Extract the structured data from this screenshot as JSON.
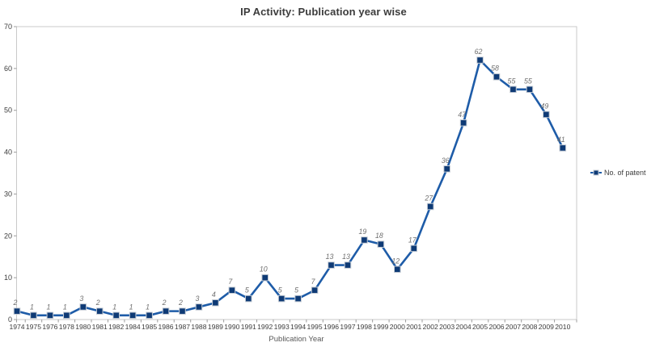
{
  "chart_data": {
    "type": "line",
    "title": "IP Activity: Publication year wise",
    "xlabel": "Publication Year",
    "ylabel": "",
    "categories": [
      "1974",
      "1975",
      "1976",
      "1978",
      "1980",
      "1981",
      "1982",
      "1984",
      "1985",
      "1986",
      "1987",
      "1988",
      "1989",
      "1990",
      "1991",
      "1992",
      "1993",
      "1994",
      "1995",
      "1996",
      "1997",
      "1998",
      "1999",
      "2000",
      "2001",
      "2002",
      "2003",
      "2004",
      "2005",
      "2006",
      "2007",
      "2008",
      "2009",
      "2010"
    ],
    "series": [
      {
        "name": "No. of patent",
        "values": [
          2,
          1,
          1,
          1,
          3,
          2,
          1,
          1,
          1,
          2,
          2,
          3,
          4,
          7,
          5,
          10,
          5,
          5,
          7,
          13,
          13,
          19,
          18,
          12,
          17,
          27,
          36,
          47,
          62,
          58,
          55,
          55,
          49,
          41
        ]
      }
    ],
    "ylim": [
      0,
      70
    ],
    "ytick_step": 10,
    "grid": false,
    "legend_position": "right",
    "marker": "square",
    "data_labels": true
  },
  "colors": {
    "line": "#1E5CA8",
    "marker_fill": "#0E3A75",
    "marker_edge": "#C4CBD4",
    "plot_border": "#C9C9C9",
    "axis_line": "#9C9C9C",
    "title_text": "#3C3C3C",
    "tick_text": "#3C3C3C",
    "data_label_text": "#707070",
    "axis_title_text": "#585858",
    "legend_text": "#3C3C3C",
    "background": "#FFFFFF"
  }
}
